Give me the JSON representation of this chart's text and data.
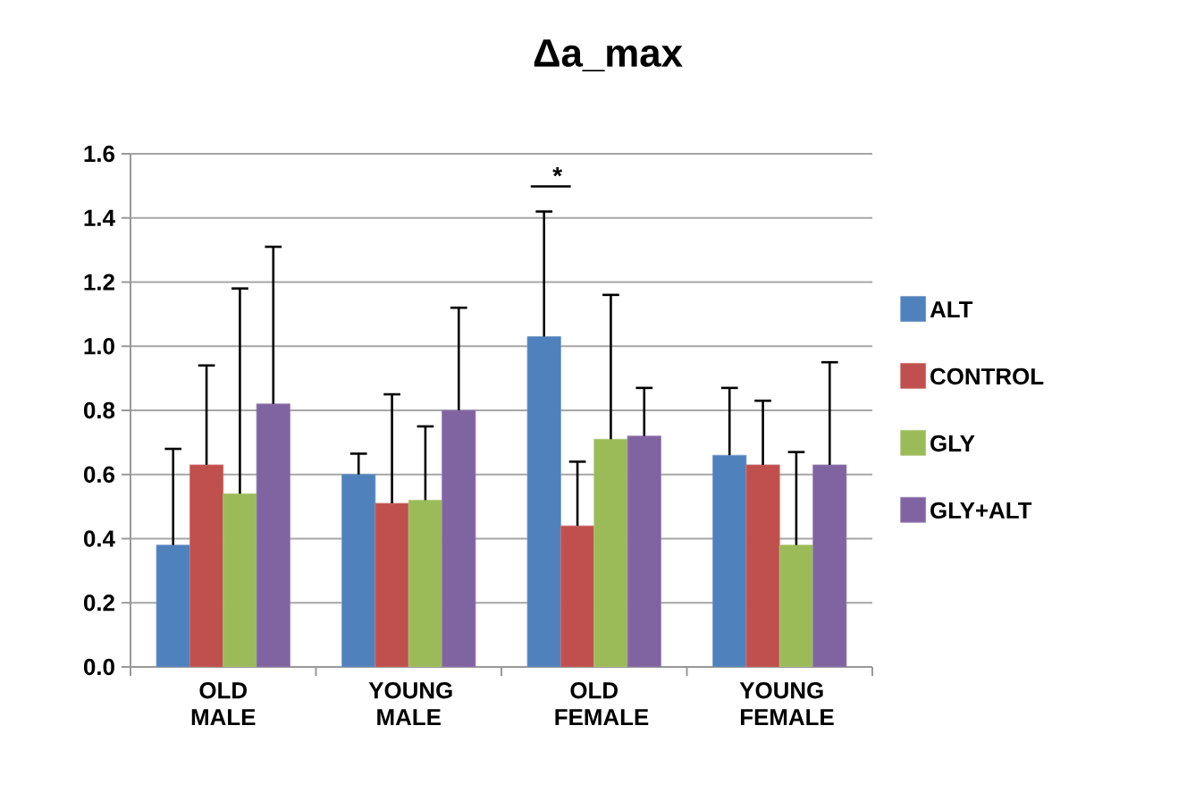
{
  "chart_data": {
    "type": "bar",
    "title": "Δa_max",
    "categories": [
      "OLD MALE",
      "YOUNG MALE",
      "OLD FEMALE",
      "YOUNG FEMALE"
    ],
    "series": [
      {
        "name": "ALT",
        "color": "#4f81bd",
        "values": [
          0.38,
          0.6,
          1.03,
          0.66
        ],
        "errors": [
          [
            0.38,
            0.68
          ],
          [
            0.6,
            0.665
          ],
          [
            1.03,
            1.42
          ],
          [
            0.66,
            0.87
          ]
        ]
      },
      {
        "name": "CONTROL",
        "color": "#c0504d",
        "values": [
          0.63,
          0.51,
          0.44,
          0.63
        ],
        "errors": [
          [
            0.63,
            0.94
          ],
          [
            0.51,
            0.85
          ],
          [
            0.44,
            0.64
          ],
          [
            0.63,
            0.83
          ]
        ]
      },
      {
        "name": "GLY",
        "color": "#9bbb59",
        "values": [
          0.54,
          0.52,
          0.71,
          0.38
        ],
        "errors": [
          [
            0.54,
            1.18
          ],
          [
            0.52,
            0.75
          ],
          [
            0.71,
            1.16
          ],
          [
            0.38,
            0.67
          ]
        ]
      },
      {
        "name": "GLY+ALT",
        "color": "#8064a2",
        "values": [
          0.82,
          0.8,
          0.72,
          0.63
        ],
        "errors": [
          [
            0.82,
            1.31
          ],
          [
            0.8,
            1.12
          ],
          [
            0.72,
            0.87
          ],
          [
            0.63,
            0.95
          ]
        ]
      }
    ],
    "ylim": [
      0,
      1.6
    ],
    "yticks": [
      {
        "value": 0,
        "label": "0.0"
      },
      0.2,
      0.4,
      0.6,
      0.8,
      {
        "value": 1,
        "label": "1.0"
      },
      1.2,
      1.4,
      1.6
    ],
    "grid": "y",
    "legend": "right",
    "annotations": [
      "*"
    ]
  }
}
